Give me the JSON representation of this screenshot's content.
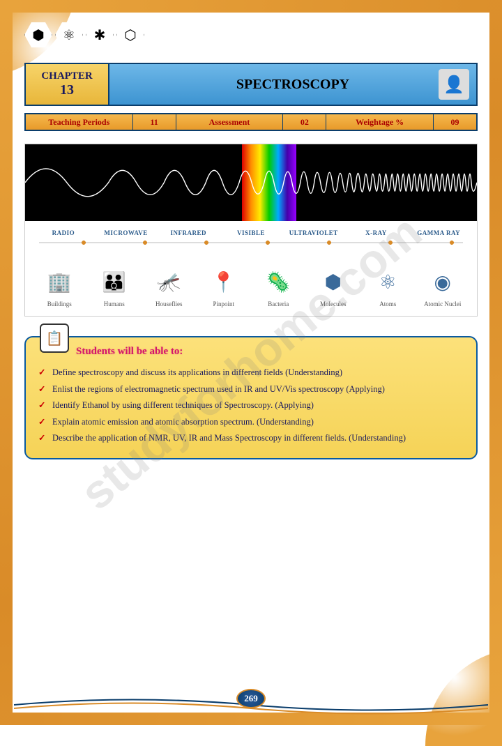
{
  "chapter": {
    "label": "CHAPTER",
    "number": "13",
    "title": "SPECTROSCOPY"
  },
  "info": {
    "periods_label": "Teaching Periods",
    "periods_val": "11",
    "assess_label": "Assessment",
    "assess_val": "02",
    "weight_label": "Weightage %",
    "weight_val": "09"
  },
  "spectrum": {
    "bands": [
      "RADIO",
      "MICROWAVE",
      "INFRARED",
      "VISIBLE",
      "ULTRAVIOLET",
      "X-RAY",
      "GAMMA RAY"
    ],
    "scales": [
      {
        "icon": "🏢",
        "label": "Buildings"
      },
      {
        "icon": "👪",
        "label": "Humans"
      },
      {
        "icon": "🦟",
        "label": "Houseflies"
      },
      {
        "icon": "📍",
        "label": "Pinpoint"
      },
      {
        "icon": "🦠",
        "label": "Bacteria"
      },
      {
        "icon": "⬢",
        "label": "Molecules"
      },
      {
        "icon": "⚛",
        "label": "Atoms"
      },
      {
        "icon": "◉",
        "label": "Atomic Nuclei"
      }
    ]
  },
  "objectives": {
    "title": "Students will be able to:",
    "items": [
      "Define spectroscopy and discuss its applications in different fields (Understanding)",
      "Enlist the regions of electromagnetic spectrum used in IR and UV/Vis spectroscopy (Applying)",
      "Identify Ethanol by using different techniques of Spectroscopy. (Applying)",
      "Explain atomic emission and atomic absorption spectrum. (Understanding)",
      "Describe the application of NMR, UV, IR and Mass Spectroscopy in different fields. (Understanding)"
    ]
  },
  "page_number": "269",
  "watermark": "studyforhome.com",
  "colors": {
    "border_orange": "#e8a33c",
    "header_blue": "#3d94d1",
    "header_gold": "#e8b63a",
    "info_orange": "#e89a2a",
    "dark_blue": "#0a3d6b",
    "obj_yellow": "#f5d357",
    "obj_title": "#d4156b",
    "check": "#c00",
    "band_label": "#2a5a8a"
  }
}
